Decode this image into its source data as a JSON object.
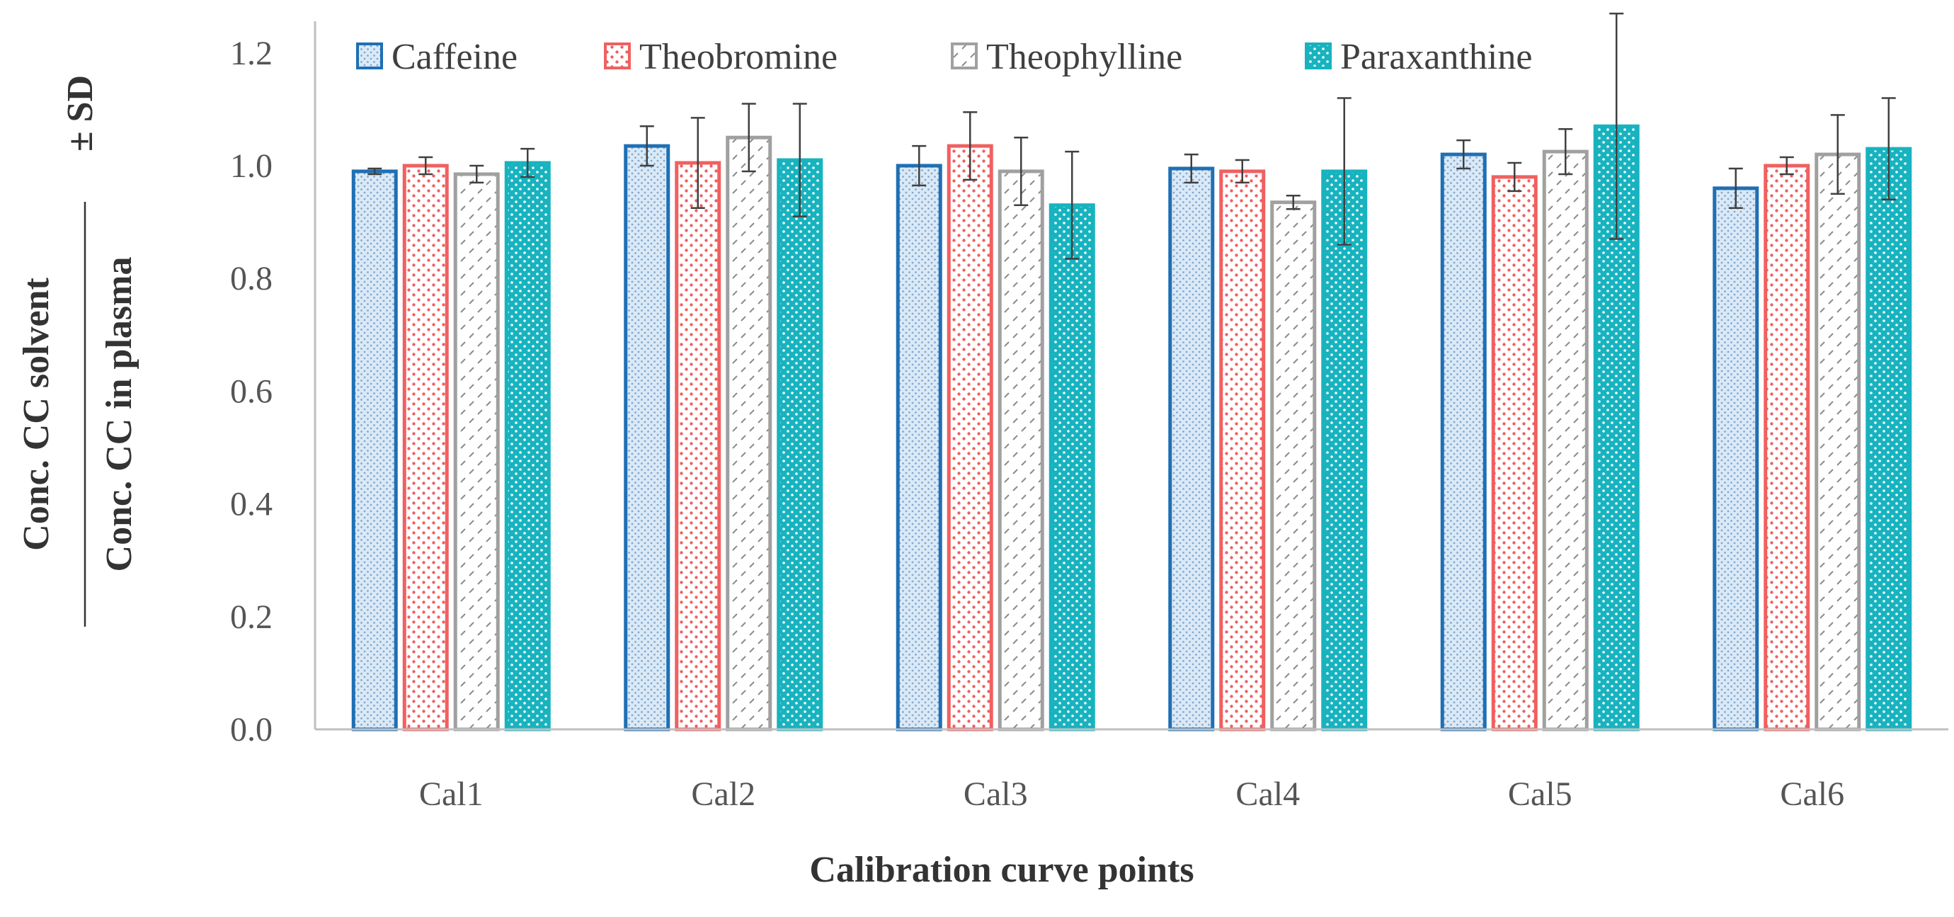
{
  "chart_data": {
    "type": "bar",
    "title": "",
    "xlabel": "Calibration curve points",
    "ylabel": {
      "prefix": "± SD",
      "numerator": "Conc. CC solvent",
      "denominator": "Conc. CC in plasma"
    },
    "ylim": [
      0,
      1.25
    ],
    "yticks": [
      "0.0",
      "0.2",
      "0.4",
      "0.6",
      "0.8",
      "1.0",
      "1.2"
    ],
    "categories": [
      "Cal1",
      "Cal2",
      "Cal3",
      "Cal4",
      "Cal5",
      "Cal6"
    ],
    "legend_position": "top",
    "series": [
      {
        "name": "Caffeine",
        "color": "#1f6fb4",
        "fill": "#dbe9f6",
        "pattern": "fine-dots",
        "values": [
          0.99,
          1.035,
          1.0,
          0.995,
          1.02,
          0.96
        ],
        "errors": [
          0.005,
          0.035,
          0.035,
          0.025,
          0.025,
          0.035
        ]
      },
      {
        "name": "Theobromine",
        "color": "#f06060",
        "fill": "#ffffff",
        "pattern": "red-dots",
        "values": [
          1.0,
          1.005,
          1.035,
          0.99,
          0.98,
          1.0
        ],
        "errors": [
          0.015,
          0.08,
          0.06,
          0.02,
          0.025,
          0.015
        ]
      },
      {
        "name": "Theophylline",
        "color": "#a0a0a0",
        "fill": "#ffffff",
        "pattern": "dashes",
        "values": [
          0.985,
          1.05,
          0.99,
          0.935,
          1.025,
          1.02
        ],
        "errors": [
          0.015,
          0.06,
          0.06,
          0.012,
          0.04,
          0.07
        ]
      },
      {
        "name": "Paraxanthine",
        "color": "#17b3bf",
        "fill": "#17b3bf",
        "pattern": "white-dots",
        "values": [
          1.005,
          1.01,
          0.93,
          0.99,
          1.07,
          1.03
        ],
        "errors": [
          0.025,
          0.1,
          0.095,
          0.13,
          0.2,
          0.09
        ]
      }
    ]
  }
}
